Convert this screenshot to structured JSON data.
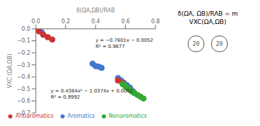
{
  "chart_data": {
    "type": "scatter",
    "x_label": "δ(ΩA,ΩB)/RAB",
    "y_label": "VXC (ΩA,ΩB)",
    "xlim": [
      0,
      0.8
    ],
    "ylim": [
      -0.7,
      0.0
    ],
    "xticks": [
      {
        "value": 0,
        "label": "0.0"
      },
      0.2,
      0.4,
      0.6,
      0.8
    ],
    "yticks": [
      {
        "value": 0.0,
        "label": "0.0"
      },
      {
        "value": -0.1,
        "label": "−0.1"
      },
      {
        "value": -0.2,
        "label": "−0.2"
      },
      {
        "value": -0.3,
        "label": "−0.3"
      },
      {
        "value": -0.4,
        "label": "−0.4"
      },
      {
        "value": -0.5,
        "label": "−0.5"
      },
      {
        "value": -0.6,
        "label": "−0.6"
      },
      {
        "value": -0.7,
        "label": "−0.7"
      }
    ],
    "grid": false,
    "legend": "bottom",
    "series": [
      {
        "name": "Aromatics",
        "color": "#4477cc",
        "x": [
          0.02,
          0.04,
          0.38,
          0.4,
          0.42,
          0.44,
          0.55,
          0.57,
          0.59,
          0.61,
          0.63,
          0.65
        ],
        "values": [
          -0.015,
          -0.03,
          -0.29,
          -0.31,
          -0.315,
          -0.325,
          -0.41,
          -0.43,
          -0.45,
          -0.47,
          -0.49,
          -0.52
        ]
      },
      {
        "name": "Antiaromatics",
        "color": "#cc3333",
        "x": [
          0.02,
          0.05,
          0.08,
          0.11,
          0.55,
          0.58
        ],
        "values": [
          -0.02,
          -0.05,
          -0.07,
          -0.09,
          -0.43,
          -0.45
        ]
      },
      {
        "name": "Nonaromatics",
        "color": "#33aa33",
        "x": [
          0.58,
          0.6,
          0.62,
          0.64,
          0.66,
          0.68,
          0.7,
          0.72
        ],
        "values": [
          -0.46,
          -0.48,
          -0.5,
          -0.52,
          -0.535,
          -0.55,
          -0.565,
          -0.58
        ]
      }
    ],
    "annotations": [
      {
        "text": "y = −0.7601x − 0.0052\nR² = 0.9877",
        "x": 0.4,
        "y": -0.08
      },
      {
        "text": "y = 0.4384x² − 1.0374x + 0.0052\nR² = 0.9992",
        "x": 0.1,
        "y": -0.5
      },
      {
        "text": "δ(ΩA, ΩB)/RAB = m VXC(ΩA,ΩB)"
      },
      {
        "text": "2θ"
      },
      {
        "text": "2θ"
      }
    ]
  }
}
